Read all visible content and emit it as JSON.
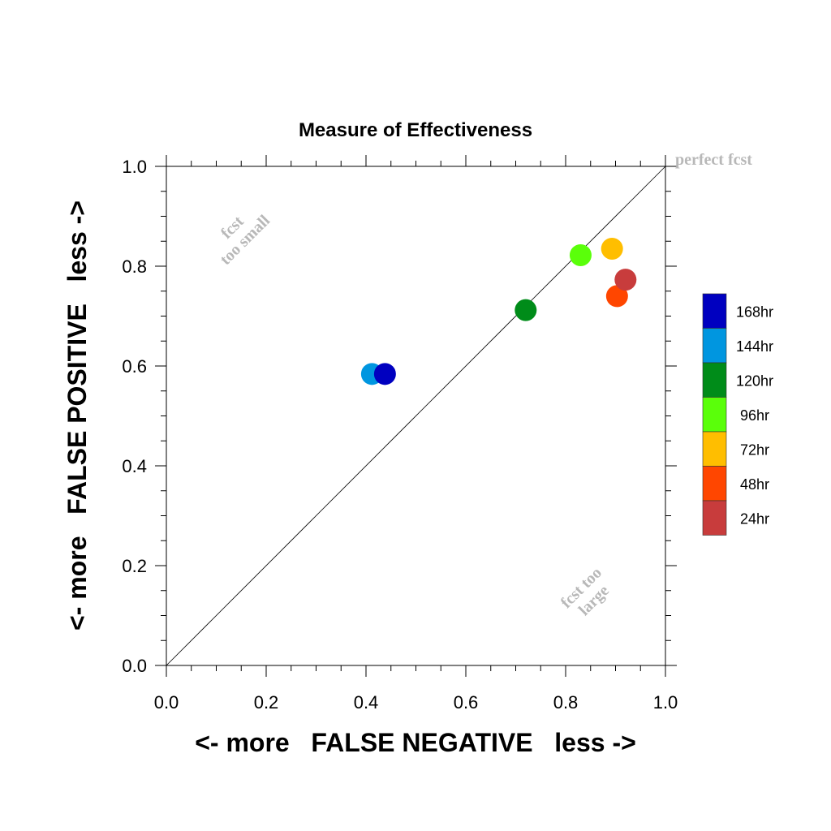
{
  "chart_data": {
    "type": "scatter",
    "title": "Measure of Effectiveness",
    "xlabel": "<- more   FALSE NEGATIVE   less ->",
    "ylabel": "<- more   FALSE POSITIVE   less ->",
    "xlim": [
      0.0,
      1.0
    ],
    "ylim": [
      0.0,
      1.0
    ],
    "x_ticks": [
      "0.0",
      "0.2",
      "0.4",
      "0.6",
      "0.8",
      "1.0"
    ],
    "y_ticks": [
      "0.0",
      "0.2",
      "0.4",
      "0.6",
      "0.8",
      "1.0"
    ],
    "x_tick_values": [
      0.0,
      0.2,
      0.4,
      0.6,
      0.8,
      1.0
    ],
    "y_tick_values": [
      0.0,
      0.2,
      0.4,
      0.6,
      0.8,
      1.0
    ],
    "grid": false,
    "diagonal_line": true,
    "legend_position": "right",
    "annotations": {
      "perfect": "perfect fcst",
      "too_small_line1": "fcst",
      "too_small_line2": "too small",
      "too_large_line1": "fcst too",
      "too_large_line2": "large"
    },
    "series": [
      {
        "name": "168hr",
        "color": "#0000c0",
        "x": 0.438,
        "y": 0.584
      },
      {
        "name": "144hr",
        "color": "#0096e0",
        "x": 0.412,
        "y": 0.584
      },
      {
        "name": "120hr",
        "color": "#008c19",
        "x": 0.72,
        "y": 0.712
      },
      {
        "name": "96hr",
        "color": "#5aff0a",
        "x": 0.83,
        "y": 0.822
      },
      {
        "name": "72hr",
        "color": "#ffbe00",
        "x": 0.893,
        "y": 0.835
      },
      {
        "name": "48hr",
        "color": "#ff4600",
        "x": 0.903,
        "y": 0.74
      },
      {
        "name": "24hr",
        "color": "#c83c3c",
        "x": 0.92,
        "y": 0.773
      }
    ],
    "plot_order": [
      "144hr",
      "168hr",
      "120hr",
      "96hr",
      "72hr",
      "48hr",
      "24hr"
    ]
  }
}
